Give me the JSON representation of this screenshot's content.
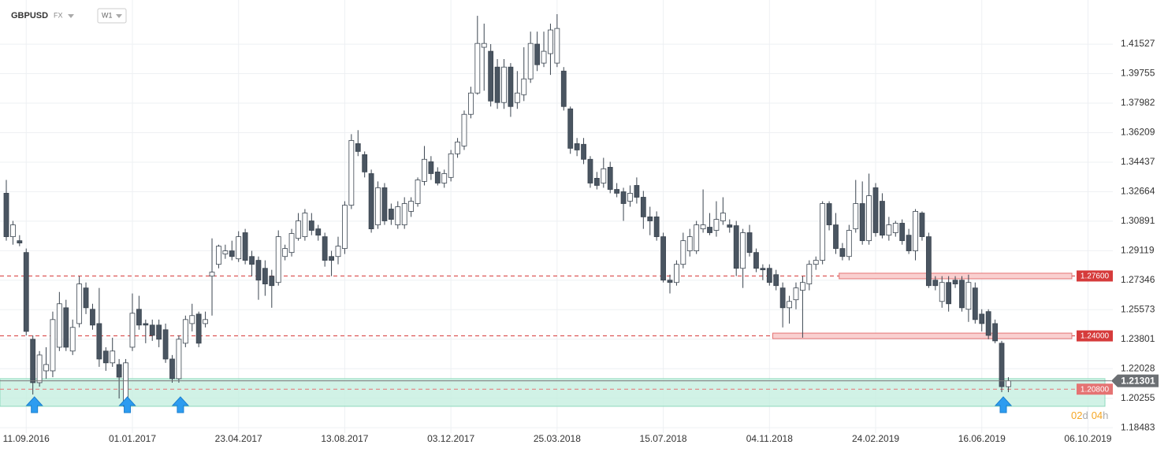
{
  "header": {
    "symbol": "GBPUSD",
    "market": "FX",
    "interval": "W1"
  },
  "countdown": [
    "02",
    "d",
    "04",
    "h"
  ],
  "chart_data": {
    "type": "candlestick",
    "categories": [
      null,
      null,
      null,
      "11.09.2016",
      null,
      null,
      null,
      null,
      null,
      null,
      null,
      null,
      null,
      null,
      null,
      null,
      null,
      null,
      null,
      "01.01.2017",
      null,
      null,
      null,
      null,
      null,
      null,
      null,
      null,
      null,
      null,
      null,
      null,
      null,
      null,
      null,
      "23.04.2017",
      null,
      null,
      null,
      null,
      null,
      null,
      null,
      null,
      null,
      null,
      null,
      null,
      null,
      null,
      null,
      "13.08.2017",
      null,
      null,
      null,
      null,
      null,
      null,
      null,
      null,
      null,
      null,
      null,
      null,
      null,
      null,
      null,
      "03.12.2017",
      null,
      null,
      null,
      null,
      null,
      null,
      null,
      null,
      null,
      null,
      null,
      null,
      null,
      null,
      null,
      "25.03.2018",
      null,
      null,
      null,
      null,
      null,
      null,
      null,
      null,
      null,
      null,
      null,
      null,
      null,
      null,
      null,
      "15.07.2018",
      null,
      null,
      null,
      null,
      null,
      null,
      null,
      null,
      null,
      null,
      null,
      null,
      null,
      null,
      null,
      "04.11.2018",
      null,
      null,
      null,
      null,
      null,
      null,
      null,
      null,
      null,
      null,
      null,
      null,
      null,
      null,
      null,
      "24.02.2019",
      null,
      null,
      null,
      null,
      null,
      null,
      null,
      null,
      null,
      null,
      null,
      null,
      null,
      null,
      null,
      "16.06.2019",
      null,
      null,
      null,
      null,
      null,
      null,
      null,
      null,
      null,
      null,
      null,
      null,
      null,
      null,
      null,
      "06.10.2019",
      null,
      null,
      null,
      null
    ],
    "candles": [
      [
        1.3257,
        1.3337,
        1.2972,
        1.2996
      ],
      [
        1.2996,
        1.3091,
        1.2948,
        1.3067
      ],
      [
        1.2972,
        1.3005,
        1.2939,
        1.2958
      ],
      [
        1.2901,
        1.2925,
        1.2403,
        1.2427
      ],
      [
        1.238,
        1.2403,
        1.2048,
        1.2119
      ],
      [
        1.2119,
        1.2309,
        1.2095,
        1.2285
      ],
      [
        1.219,
        1.2332,
        1.2143,
        1.2228
      ],
      [
        1.219,
        1.2546,
        1.2152,
        1.2498
      ],
      [
        1.2332,
        1.2664,
        1.2309,
        1.2593
      ],
      [
        1.2569,
        1.2617,
        1.2309,
        1.2332
      ],
      [
        1.2309,
        1.2498,
        1.2285,
        1.2451
      ],
      [
        1.2474,
        1.2759,
        1.2451,
        1.2712
      ],
      [
        1.2688,
        1.2721,
        1.2531,
        1.2569
      ],
      [
        1.256,
        1.2593,
        1.2437,
        1.2465
      ],
      [
        1.2474,
        1.2688,
        1.2214,
        1.2261
      ],
      [
        1.2309,
        1.2332,
        1.219,
        1.2238
      ],
      [
        1.2238,
        1.2389,
        1.2214,
        1.2309
      ],
      [
        1.2228,
        1.2261,
        1.2024,
        1.2152
      ],
      [
        1.1977,
        1.2261,
        1.1963,
        1.2238
      ],
      [
        1.2332,
        1.2655,
        1.2309,
        1.2536
      ],
      [
        1.256,
        1.2641,
        1.2437,
        1.2465
      ],
      [
        1.2474,
        1.2498,
        1.2356,
        1.2465
      ],
      [
        1.2465,
        1.2498,
        1.237,
        1.2403
      ],
      [
        1.2465,
        1.2498,
        1.2332,
        1.238
      ],
      [
        1.2437,
        1.2474,
        1.2238,
        1.2261
      ],
      [
        1.2261,
        1.2285,
        1.2119,
        1.2143
      ],
      [
        1.2143,
        1.2403,
        1.2119,
        1.238
      ],
      [
        1.2356,
        1.2522,
        1.2332,
        1.2498
      ],
      [
        1.2474,
        1.2593,
        1.2427,
        1.2522
      ],
      [
        1.2531,
        1.2546,
        1.2332,
        1.2356
      ],
      [
        1.2474,
        1.2546,
        1.2451,
        1.2498
      ],
      [
        1.2759,
        1.2986,
        1.2522,
        1.2783
      ],
      [
        1.283,
        1.2948,
        1.2806,
        1.2939
      ],
      [
        1.2892,
        1.2948,
        1.2863,
        1.2911
      ],
      [
        1.2911,
        1.2972,
        1.2854,
        1.2877
      ],
      [
        1.2863,
        1.3029,
        1.2844,
        1.2996
      ],
      [
        1.302,
        1.3043,
        1.283,
        1.2854
      ],
      [
        1.2877,
        1.2911,
        1.2759,
        1.283
      ],
      [
        1.2854,
        1.2877,
        1.2617,
        1.2735
      ],
      [
        1.2806,
        1.2854,
        1.2641,
        1.2712
      ],
      [
        1.2759,
        1.2797,
        1.2569,
        1.2702
      ],
      [
        1.2721,
        1.3034,
        1.2702,
        1.2996
      ],
      [
        1.2877,
        1.2948,
        1.2854,
        1.2925
      ],
      [
        1.2901,
        1.3043,
        1.2877,
        1.3015
      ],
      [
        1.2986,
        1.3138,
        1.2972,
        1.3091
      ],
      [
        1.2996,
        1.3162,
        1.2972,
        1.3138
      ],
      [
        1.3091,
        1.3138,
        1.3005,
        1.3034
      ],
      [
        1.3043,
        1.3067,
        1.2972,
        1.3005
      ],
      [
        1.2996,
        1.302,
        1.2816,
        1.2854
      ],
      [
        1.2877,
        1.2911,
        1.2759,
        1.2854
      ],
      [
        1.2877,
        1.2996,
        1.283,
        1.2939
      ],
      [
        1.2925,
        1.3209,
        1.2892,
        1.3185
      ],
      [
        1.3185,
        1.3612,
        1.3162,
        1.3574
      ],
      [
        1.3555,
        1.3636,
        1.348,
        1.3508
      ],
      [
        1.3489,
        1.3508,
        1.3352,
        1.3385
      ],
      [
        1.3375,
        1.3399,
        1.302,
        1.3043
      ],
      [
        1.3067,
        1.3328,
        1.3043,
        1.329
      ],
      [
        1.329,
        1.3318,
        1.3067,
        1.3091
      ],
      [
        1.3162,
        1.3195,
        1.3067,
        1.31
      ],
      [
        1.3067,
        1.3209,
        1.3043,
        1.3176
      ],
      [
        1.3067,
        1.3233,
        1.3043,
        1.3195
      ],
      [
        1.3148,
        1.3233,
        1.3115,
        1.3209
      ],
      [
        1.3195,
        1.3352,
        1.3176,
        1.3337
      ],
      [
        1.3328,
        1.3541,
        1.3304,
        1.3461
      ],
      [
        1.3446,
        1.348,
        1.3337,
        1.3375
      ],
      [
        1.3385,
        1.3413,
        1.3304,
        1.3318
      ],
      [
        1.3318,
        1.3399,
        1.329,
        1.3375
      ],
      [
        1.3352,
        1.3517,
        1.3328,
        1.3494
      ],
      [
        1.3494,
        1.3589,
        1.347,
        1.3565
      ],
      [
        1.3541,
        1.3754,
        1.3517,
        1.3731
      ],
      [
        1.3731,
        1.3897,
        1.3707,
        1.3859
      ],
      [
        1.3859,
        1.4323,
        1.3849,
        1.4157
      ],
      [
        1.4134,
        1.4276,
        1.3873,
        1.4157
      ],
      [
        1.411,
        1.4153,
        1.3778,
        1.3811
      ],
      [
        1.4015,
        1.4063,
        1.3764,
        1.3802
      ],
      [
        1.3802,
        1.4063,
        1.3764,
        1.4015
      ],
      [
        1.4015,
        1.4039,
        1.3716,
        1.3778
      ],
      [
        1.3802,
        1.3991,
        1.3764,
        1.3859
      ],
      [
        1.3849,
        1.4134,
        1.3811,
        1.3944
      ],
      [
        1.3944,
        1.4228,
        1.392,
        1.4157
      ],
      [
        1.4153,
        1.4228,
        1.3991,
        1.4029
      ],
      [
        1.4039,
        1.4228,
        1.4015,
        1.411
      ],
      [
        1.4096,
        1.4276,
        1.3968,
        1.4238
      ],
      [
        1.4039,
        1.4333,
        1.4015,
        1.4247
      ],
      [
        1.3991,
        1.4015,
        1.3754,
        1.3778
      ],
      [
        1.3764,
        1.3778,
        1.3494,
        1.3527
      ],
      [
        1.3555,
        1.3589,
        1.348,
        1.3517
      ],
      [
        1.3551,
        1.3589,
        1.3432,
        1.3461
      ],
      [
        1.3461,
        1.348,
        1.329,
        1.3318
      ],
      [
        1.3347,
        1.3385,
        1.328,
        1.3304
      ],
      [
        1.3318,
        1.347,
        1.329,
        1.3404
      ],
      [
        1.3413,
        1.3446,
        1.3257,
        1.328
      ],
      [
        1.328,
        1.3318,
        1.3233,
        1.3257
      ],
      [
        1.3266,
        1.329,
        1.3091,
        1.3195
      ],
      [
        1.3209,
        1.3304,
        1.3176,
        1.3257
      ],
      [
        1.3304,
        1.3352,
        1.3195,
        1.3233
      ],
      [
        1.3233,
        1.3271,
        1.3043,
        1.3115
      ],
      [
        1.3115,
        1.3176,
        1.3005,
        1.3091
      ],
      [
        1.3115,
        1.3148,
        1.2972,
        1.2996
      ],
      [
        1.2996,
        1.302,
        1.2721,
        1.2735
      ],
      [
        1.2735,
        1.2768,
        1.2655,
        1.2721
      ],
      [
        1.2721,
        1.2854,
        1.2702,
        1.283
      ],
      [
        1.283,
        1.302,
        1.2806,
        1.2972
      ],
      [
        1.2911,
        1.3043,
        1.2877,
        1.2996
      ],
      [
        1.2911,
        1.3091,
        1.2892,
        1.3067
      ],
      [
        1.3043,
        1.328,
        1.302,
        1.3067
      ],
      [
        1.3053,
        1.3138,
        1.3005,
        1.302
      ],
      [
        1.3034,
        1.3209,
        1.2996,
        1.31
      ],
      [
        1.3091,
        1.3233,
        1.3067,
        1.3138
      ],
      [
        1.3067,
        1.31,
        1.302,
        1.3053
      ],
      [
        1.3062,
        1.3091,
        1.2759,
        1.2806
      ],
      [
        1.2806,
        1.3043,
        1.2688,
        1.302
      ],
      [
        1.302,
        1.3067,
        1.2877,
        1.2901
      ],
      [
        1.2901,
        1.2925,
        1.2783,
        1.2806
      ],
      [
        1.2806,
        1.283,
        1.2735,
        1.2797
      ],
      [
        1.2806,
        1.283,
        1.2702,
        1.2721
      ],
      [
        1.2768,
        1.2797,
        1.2674,
        1.2702
      ],
      [
        1.2688,
        1.2721,
        1.2451,
        1.2569
      ],
      [
        1.2569,
        1.2641,
        1.2474,
        1.2607
      ],
      [
        1.2617,
        1.2721,
        1.256,
        1.2688
      ],
      [
        1.2674,
        1.2759,
        1.2389,
        1.2721
      ],
      [
        1.2712,
        1.2854,
        1.2674,
        1.283
      ],
      [
        1.283,
        1.2877,
        1.2797,
        1.2854
      ],
      [
        1.2854,
        1.3209,
        1.283,
        1.3195
      ],
      [
        1.3195,
        1.3209,
        1.3034,
        1.3067
      ],
      [
        1.3067,
        1.3138,
        1.2892,
        1.2925
      ],
      [
        1.2925,
        1.2958,
        1.2854,
        1.2877
      ],
      [
        1.2877,
        1.3067,
        1.2854,
        1.3034
      ],
      [
        1.3043,
        1.3337,
        1.302,
        1.3195
      ],
      [
        1.3195,
        1.3328,
        1.2948,
        1.2972
      ],
      [
        1.2972,
        1.3375,
        1.2948,
        1.3242
      ],
      [
        1.329,
        1.3318,
        1.2996,
        1.302
      ],
      [
        1.3209,
        1.3257,
        1.2986,
        1.3005
      ],
      [
        1.3005,
        1.3115,
        1.2972,
        1.3067
      ],
      [
        1.302,
        1.3091,
        1.2996,
        1.3077
      ],
      [
        1.3077,
        1.31,
        1.2948,
        1.2972
      ],
      [
        1.3005,
        1.3043,
        1.2892,
        1.2911
      ],
      [
        1.2911,
        1.3162,
        1.2854,
        1.3148
      ],
      [
        1.3138,
        1.3148,
        1.2972,
        1.2996
      ],
      [
        1.2996,
        1.302,
        1.2688,
        1.2702
      ],
      [
        1.2735,
        1.2759,
        1.2674,
        1.2702
      ],
      [
        1.2607,
        1.2759,
        1.2569,
        1.2721
      ],
      [
        1.2721,
        1.2759,
        1.2546,
        1.2593
      ],
      [
        1.2735,
        1.2759,
        1.2688,
        1.2712
      ],
      [
        1.2735,
        1.2759,
        1.2546,
        1.2569
      ],
      [
        1.256,
        1.2768,
        1.2484,
        1.2721
      ],
      [
        1.2688,
        1.2721,
        1.2474,
        1.2498
      ],
      [
        1.2531,
        1.256,
        1.2427,
        1.2474
      ],
      [
        1.2546,
        1.256,
        1.238,
        1.2403
      ],
      [
        1.2474,
        1.2498,
        1.2356,
        1.237
      ],
      [
        1.2356,
        1.237,
        1.2062,
        1.2095
      ],
      [
        1.2095,
        1.2152,
        1.2062,
        1.21301
      ],
      null,
      null,
      null,
      null,
      null,
      null,
      null,
      null,
      null,
      null,
      null,
      null,
      null,
      null,
      null,
      null
    ],
    "up_color": "#ffffff",
    "down_color": "#4a5561",
    "wick_color": "#3b4550",
    "ylim": [
      1.1816,
      1.4418
    ],
    "yticks": [
      1.41527,
      1.39755,
      1.37982,
      1.36209,
      1.34437,
      1.32664,
      1.30891,
      1.29119,
      1.27346,
      1.25573,
      1.23801,
      1.22028,
      1.20255,
      1.18483
    ],
    "grid": true,
    "last_price": 1.21301,
    "levels": [
      {
        "value": 1.276,
        "label": "1.27600",
        "color": "#d63b3b"
      },
      {
        "value": 1.24,
        "label": "1.24000",
        "color": "#d63b3b"
      },
      {
        "value": 1.208,
        "label": "1.20800",
        "color": "#e57373"
      }
    ],
    "zone": {
      "from": 1.1977,
      "to": 1.2143,
      "color": "#c6efe0"
    }
  }
}
